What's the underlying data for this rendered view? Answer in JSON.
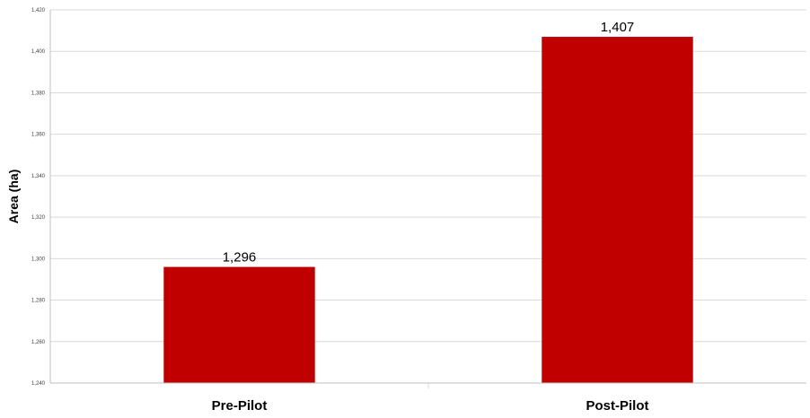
{
  "chart_data": {
    "type": "bar",
    "title": "",
    "xlabel": "",
    "ylabel": "Area (ha)",
    "categories": [
      "Pre-Pilot",
      "Post-Pilot"
    ],
    "values": [
      1296,
      1407
    ],
    "data_labels": [
      "1,296",
      "1,407"
    ],
    "ylim": [
      1240,
      1420
    ],
    "yticks": [
      1240,
      1260,
      1280,
      1300,
      1320,
      1340,
      1360,
      1380,
      1400,
      1420
    ],
    "ytick_labels": [
      "1,240",
      "1,260",
      "1,280",
      "1,300",
      "1,320",
      "1,340",
      "1,360",
      "1,380",
      "1,400",
      "1,420"
    ],
    "grid": true,
    "legend": "none",
    "bar_color": "#c00000",
    "grid_color": "#d9d9d9"
  }
}
